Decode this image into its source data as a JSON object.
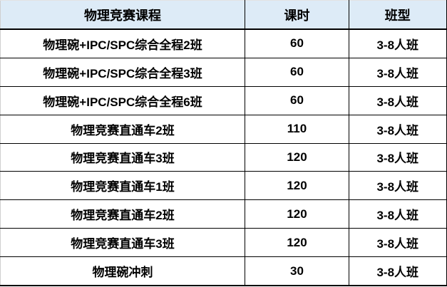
{
  "table": {
    "title_semantics": "physics-competition-course-schedule",
    "headers": [
      "物理竞赛课程",
      "课时",
      "班型"
    ],
    "rows": [
      {
        "course": "物理碗+IPC/SPC综合全程2班",
        "hours": "60",
        "class_type": "3-8人班"
      },
      {
        "course": "物理碗+IPC/SPC综合全程3班",
        "hours": "60",
        "class_type": "3-8人班"
      },
      {
        "course": "物理碗+IPC/SPC综合全程6班",
        "hours": "60",
        "class_type": "3-8人班"
      },
      {
        "course": "物理竞赛直通车2班",
        "hours": "110",
        "class_type": "3-8人班"
      },
      {
        "course": "物理竞赛直通车3班",
        "hours": "120",
        "class_type": "3-8人班"
      },
      {
        "course": "物理竞赛直通车1班",
        "hours": "120",
        "class_type": "3-8人班"
      },
      {
        "course": "物理竞赛直通车2班",
        "hours": "120",
        "class_type": "3-8人班"
      },
      {
        "course": "物理竞赛直通车3班",
        "hours": "120",
        "class_type": "3-8人班"
      },
      {
        "course": "物理碗冲刺",
        "hours": "30",
        "class_type": "3-8人班"
      }
    ],
    "colors": {
      "header_bg": "#ddebf7",
      "row_bg": "#ffffff",
      "border_dark": "#000000",
      "border_light": "#cfcfcf",
      "text": "#000000"
    }
  }
}
